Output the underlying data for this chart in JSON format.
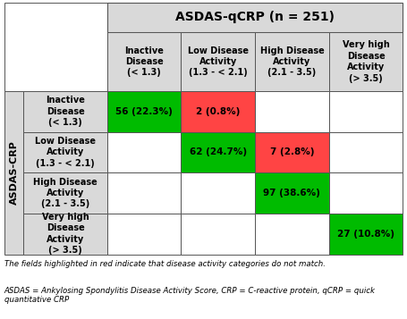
{
  "title": "ASDAS-qCRP (n = 251)",
  "col_headers": [
    "Inactive\nDisease\n(< 1.3)",
    "Low Disease\nActivity\n(1.3 - < 2.1)",
    "High Disease\nActivity\n(2.1 - 3.5)",
    "Very high\nDisease\nActivity\n(> 3.5)"
  ],
  "row_headers": [
    "Inactive\nDisease\n(< 1.3)",
    "Low Disease\nActivity\n(1.3 - < 2.1)",
    "High Disease\nActivity\n(2.1 - 3.5)",
    "Very high\nDisease\nActivity\n(> 3.5)"
  ],
  "ylabel": "ASDAS-CRP",
  "cells": [
    [
      {
        "text": "56 (22.3%)",
        "color": "#00bb00"
      },
      {
        "text": "2 (0.8%)",
        "color": "#ff4444"
      },
      {
        "text": "",
        "color": "#ffffff"
      },
      {
        "text": "",
        "color": "#ffffff"
      }
    ],
    [
      {
        "text": "",
        "color": "#ffffff"
      },
      {
        "text": "62 (24.7%)",
        "color": "#00bb00"
      },
      {
        "text": "7 (2.8%)",
        "color": "#ff4444"
      },
      {
        "text": "",
        "color": "#ffffff"
      }
    ],
    [
      {
        "text": "",
        "color": "#ffffff"
      },
      {
        "text": "",
        "color": "#ffffff"
      },
      {
        "text": "97 (38.6%)",
        "color": "#00bb00"
      },
      {
        "text": "",
        "color": "#ffffff"
      }
    ],
    [
      {
        "text": "",
        "color": "#ffffff"
      },
      {
        "text": "",
        "color": "#ffffff"
      },
      {
        "text": "",
        "color": "#ffffff"
      },
      {
        "text": "27 (10.8%)",
        "color": "#00bb00"
      }
    ]
  ],
  "footnote1": "The fields highlighted in red indicate that disease activity categories do not match.",
  "footnote2": "ASDAS = Ankylosing Spondylitis Disease Activity Score, CRP = C-reactive protein, qCRP = quick\nquantitative CRP",
  "header_bg": "#d9d9d9",
  "border_color": "#555555",
  "title_fontsize": 10,
  "header_fontsize": 7,
  "cell_fontsize": 7.5,
  "ylabel_fontsize": 8,
  "footnote_fontsize": 6.2,
  "green_color": "#33cc00",
  "red_color": "#ff3333"
}
